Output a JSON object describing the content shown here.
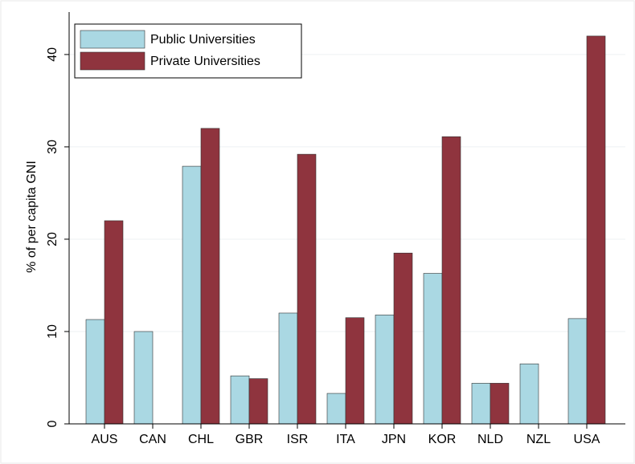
{
  "chart_data": {
    "type": "bar",
    "y_label": "% of per capita GNI",
    "categories": [
      "AUS",
      "CAN",
      "CHL",
      "GBR",
      "ISR",
      "ITA",
      "JPN",
      "KOR",
      "NLD",
      "NZL",
      "USA"
    ],
    "series": [
      {
        "name": "Public Universities",
        "color": "#aad8e3",
        "values": [
          11.3,
          10.0,
          27.9,
          5.2,
          12.0,
          3.3,
          11.8,
          16.3,
          4.4,
          6.5,
          11.4
        ]
      },
      {
        "name": "Private Universities",
        "color": "#8f343e",
        "values": [
          22.0,
          null,
          32.0,
          4.9,
          29.2,
          11.5,
          18.5,
          31.1,
          4.4,
          null,
          42.0
        ]
      }
    ],
    "ylim": [
      0,
      44.6
    ],
    "yticks": [
      0,
      10,
      20,
      30,
      40
    ],
    "grid": true,
    "legend": "top-left"
  }
}
